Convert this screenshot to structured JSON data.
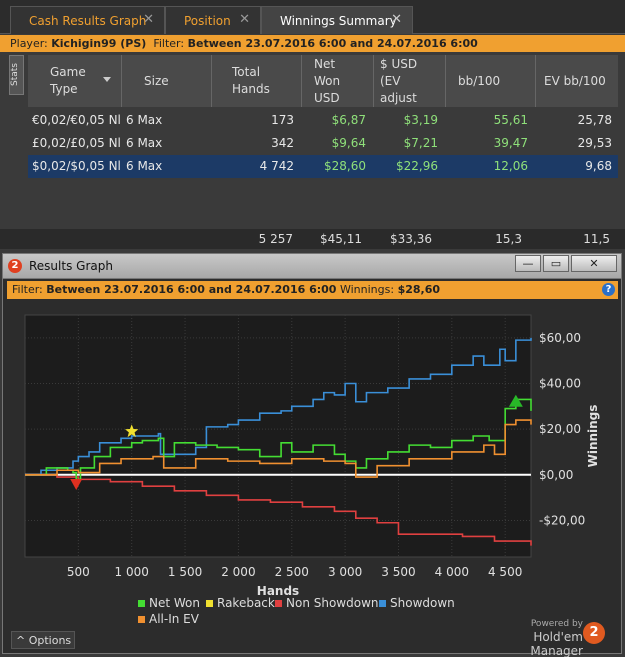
{
  "tabs": [
    {
      "label": "Cash Results Graph",
      "close": "✕",
      "active": false
    },
    {
      "label": "Position",
      "close": "✕",
      "active": false
    },
    {
      "label": "Winnings Summary",
      "close": "✕",
      "active": true
    }
  ],
  "filterbar": {
    "player_label": "Player:",
    "player_value": "Kichigin99 (PS)",
    "filter_label": "Filter:",
    "filter_value": "Between 23.07.2016 6:00 and 24.07.2016 6:00"
  },
  "stats_tab": "Stats",
  "table": {
    "headers": {
      "game_type": [
        "Game",
        "Type"
      ],
      "size": [
        "Size"
      ],
      "total_hands": [
        "Total",
        "Hands"
      ],
      "net_won": [
        "Net",
        "Won",
        "USD"
      ],
      "ev_usd": [
        "$ USD",
        "(EV",
        "adjust"
      ],
      "bb100": [
        "bb/100"
      ],
      "ev_bb100": [
        "EV bb/100"
      ]
    },
    "rows": [
      {
        "game_type": "€0,02/€0,05 Nl",
        "size": "6 Max",
        "total_hands": "173",
        "net_won": "$6,87",
        "ev_usd": "$3,19",
        "bb100": "55,61",
        "ev_bb100": "25,78"
      },
      {
        "game_type": "£0,02/£0,05 Nl",
        "size": "6 Max",
        "total_hands": "342",
        "net_won": "$9,64",
        "ev_usd": "$7,21",
        "bb100": "39,47",
        "ev_bb100": "29,53"
      },
      {
        "game_type": "$0,02/$0,05 Nl",
        "size": "6 Max",
        "total_hands": "4 742",
        "net_won": "$28,60",
        "ev_usd": "$22,96",
        "bb100": "12,06",
        "ev_bb100": "9,68"
      }
    ],
    "totals": {
      "total_hands": "5 257",
      "net_won": "$45,11",
      "ev_usd": "$33,36",
      "bb100": "15,3",
      "ev_bb100": "11,5"
    }
  },
  "graph_window": {
    "logo": "2",
    "title": "Results Graph",
    "buttons": {
      "minimize": "—",
      "restore": "▭",
      "close": "✕"
    },
    "filter_label": "Filter:",
    "filter_value": "Between 23.07.2016 6:00 and 24.07.2016 6:00",
    "winnings_label": "Winnings:",
    "winnings_value": "$28,60",
    "help": "?",
    "options_label": "Options",
    "options_caret": "^",
    "powered_by": "Powered by",
    "brand": "Hold'em Manager",
    "brand_logo": "2"
  },
  "chart_data": {
    "type": "line",
    "xlabel": "Hands",
    "ylabel": "Winnings",
    "xlim": [
      0,
      4742
    ],
    "ylim": [
      -36,
      70
    ],
    "x_ticks": [
      500,
      1000,
      1500,
      2000,
      2500,
      3000,
      3500,
      4000,
      4500
    ],
    "x_tick_labels": [
      "500",
      "1 000",
      "1 500",
      "2 000",
      "2 500",
      "3 000",
      "3 500",
      "4 000",
      "4 500"
    ],
    "y_ticks": [
      60,
      40,
      20,
      0,
      -20
    ],
    "y_tick_labels": [
      "$60,00",
      "$40,00",
      "$20,00",
      "$0,00",
      "-$20,00"
    ],
    "legend": [
      {
        "name": "Net Won",
        "color": "#44dd33"
      },
      {
        "name": "Rakeback",
        "color": "#f0e030"
      },
      {
        "name": "Non Showdown",
        "color": "#e04040"
      },
      {
        "name": "Showdown",
        "color": "#3a8fd8"
      },
      {
        "name": "All-In EV",
        "color": "#f09030"
      }
    ],
    "series": [
      {
        "name": "Showdown",
        "color": "#3a8fd8",
        "x": [
          0,
          150,
          300,
          450,
          500,
          600,
          700,
          900,
          1000,
          1250,
          1270,
          1600,
          1700,
          1900,
          2000,
          2200,
          2400,
          2500,
          2700,
          2800,
          2900,
          3000,
          3100,
          3200,
          3400,
          3600,
          3800,
          4000,
          4200,
          4300,
          4450,
          4500,
          4600,
          4742
        ],
        "y": [
          0,
          2,
          3,
          6,
          8,
          10,
          14,
          16,
          17,
          18,
          9,
          12,
          21,
          22,
          24,
          27,
          28,
          30,
          33,
          36,
          35,
          40,
          32,
          36,
          38,
          42,
          44,
          48,
          52,
          48,
          55,
          50,
          59,
          60
        ]
      },
      {
        "name": "Non Showdown",
        "color": "#e04040",
        "x": [
          0,
          300,
          500,
          800,
          1100,
          1400,
          1700,
          2000,
          2300,
          2600,
          2900,
          3100,
          3300,
          3500,
          3800,
          4100,
          4400,
          4742
        ],
        "y": [
          0,
          -1,
          -2,
          -3,
          -5,
          -7,
          -9,
          -11,
          -12,
          -14,
          -16,
          -19,
          -21,
          -26,
          -26,
          -27,
          -29,
          -31
        ]
      },
      {
        "name": "Net Won",
        "color": "#44dd33",
        "x": [
          0,
          200,
          400,
          450,
          480,
          520,
          650,
          800,
          1000,
          1100,
          1250,
          1300,
          1400,
          1600,
          1800,
          2000,
          2200,
          2400,
          2500,
          2700,
          2900,
          3000,
          3100,
          3200,
          3400,
          3600,
          3800,
          4000,
          4200,
          4350,
          4500,
          4600,
          4742
        ],
        "y": [
          0,
          3,
          2,
          1,
          -2,
          3,
          8,
          12,
          14,
          15,
          16,
          8,
          14,
          13,
          12,
          11,
          8,
          14,
          10,
          13,
          9,
          6,
          3,
          7,
          10,
          13,
          12,
          15,
          17,
          15,
          29,
          33,
          28
        ]
      },
      {
        "name": "All-In EV",
        "color": "#f09030",
        "x": [
          0,
          300,
          500,
          700,
          900,
          1200,
          1300,
          1600,
          1900,
          2200,
          2500,
          2800,
          3000,
          3100,
          3300,
          3600,
          4000,
          4300,
          4400,
          4500,
          4600,
          4742
        ],
        "y": [
          0,
          2,
          1,
          5,
          7,
          8,
          3,
          7,
          6,
          5,
          7,
          6,
          5,
          -1,
          4,
          7,
          10,
          13,
          9,
          22,
          24,
          22
        ]
      }
    ],
    "annotations": [
      {
        "type": "marker",
        "shape": "star",
        "color": "#f0e030",
        "x": 1000,
        "y": 19
      },
      {
        "type": "marker",
        "shape": "triangle-down",
        "color": "#e03020",
        "x": 480,
        "y": -4
      },
      {
        "type": "marker",
        "shape": "triangle-up",
        "color": "#28b828",
        "x": 4600,
        "y": 32
      }
    ]
  }
}
